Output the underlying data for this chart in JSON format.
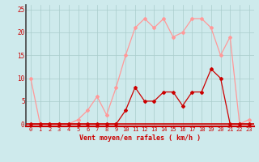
{
  "x": [
    0,
    1,
    2,
    3,
    4,
    5,
    6,
    7,
    8,
    9,
    10,
    11,
    12,
    13,
    14,
    15,
    16,
    17,
    18,
    19,
    20,
    21,
    22,
    23
  ],
  "vent_moyen": [
    0,
    0,
    0,
    0,
    0,
    0,
    0,
    0,
    0,
    0,
    3,
    8,
    5,
    5,
    7,
    7,
    4,
    7,
    7,
    12,
    10,
    0,
    0,
    0
  ],
  "rafales": [
    10,
    0,
    0,
    0,
    0,
    1,
    3,
    6,
    2,
    8,
    15,
    21,
    23,
    21,
    23,
    19,
    20,
    23,
    23,
    21,
    15,
    19,
    0,
    1
  ],
  "color_moyen": "#cc0000",
  "color_rafales": "#ff9999",
  "bg_color": "#ceeaec",
  "grid_color": "#aacccc",
  "xlabel": "Vent moyen/en rafales ( km/h )",
  "ylabel_ticks": [
    0,
    5,
    10,
    15,
    20,
    25
  ],
  "ylim": [
    -0.5,
    26
  ],
  "xlim": [
    -0.5,
    23.5
  ],
  "title": ""
}
